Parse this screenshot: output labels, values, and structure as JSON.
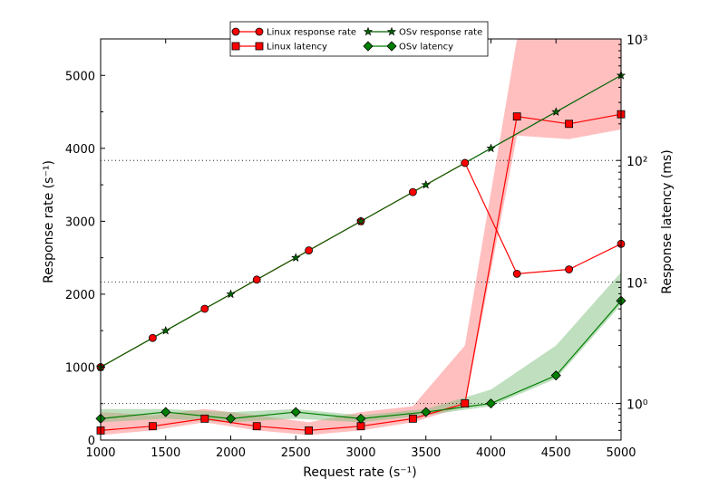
{
  "chart_data": {
    "type": "line",
    "x": [
      1000,
      1400,
      1500,
      1800,
      2000,
      2200,
      2500,
      2600,
      3000,
      3400,
      3500,
      3800,
      4000,
      4200,
      4500,
      4600,
      5000
    ],
    "xlabel": "Request rate (s⁻¹)",
    "xlim": [
      1000,
      5000
    ],
    "xticks": [
      "1000",
      "1500",
      "2000",
      "2500",
      "3000",
      "3500",
      "4000",
      "4500",
      "5000"
    ],
    "ylabel_left": "Response rate (s⁻¹)",
    "ylim_left": [
      0,
      5500
    ],
    "yticks_left": [
      "0",
      "1000",
      "2000",
      "3000",
      "4000",
      "5000"
    ],
    "ylabel_right": "Response latency (ms)",
    "yscale_right": "log",
    "ylim_right": [
      0.5,
      1000
    ],
    "yticks_right": [
      "10⁰",
      "10¹",
      "10²",
      "10³"
    ],
    "grid": "dotted horizontal lines at right-axis decades",
    "legend_position": "top-center",
    "series": [
      {
        "name": "Linux response rate",
        "axis": "left",
        "color": "#ff0000",
        "marker": "circle",
        "x": [
          1000,
          1400,
          1800,
          2200,
          2600,
          3000,
          3400,
          3800,
          4200,
          4600,
          5000
        ],
        "y": [
          1000,
          1400,
          1800,
          2200,
          2600,
          3000,
          3400,
          3800,
          2280,
          2340,
          2690
        ]
      },
      {
        "name": "Linux latency",
        "axis": "right",
        "color": "#ff0000",
        "marker": "square",
        "x": [
          1000,
          1400,
          1800,
          2200,
          2600,
          3000,
          3400,
          3800,
          4200,
          4600,
          5000
        ],
        "y": [
          0.6,
          0.65,
          0.75,
          0.65,
          0.6,
          0.65,
          0.75,
          1.0,
          230,
          200,
          240
        ],
        "band_low": [
          0.55,
          0.6,
          0.7,
          0.6,
          0.55,
          0.6,
          0.7,
          0.95,
          160,
          150,
          180
        ],
        "band_high": [
          0.85,
          0.8,
          0.9,
          0.8,
          0.7,
          0.85,
          0.95,
          3.0,
          2000,
          2000,
          2000
        ],
        "band_color": "#ff8080"
      },
      {
        "name": "OSv response rate",
        "axis": "left",
        "color": "#006400",
        "marker": "star",
        "x": [
          1000,
          1500,
          2000,
          2500,
          3000,
          3500,
          4000,
          4500,
          5000
        ],
        "y": [
          1000,
          1500,
          2000,
          2500,
          3000,
          3500,
          4000,
          4500,
          5000
        ]
      },
      {
        "name": "OSv latency",
        "axis": "right",
        "color": "#008000",
        "marker": "diamond",
        "x": [
          1000,
          1500,
          2000,
          2500,
          3000,
          3500,
          4000,
          4500,
          5000
        ],
        "y": [
          0.75,
          0.85,
          0.75,
          0.85,
          0.75,
          0.85,
          1.0,
          1.7,
          7.0
        ],
        "band_low": [
          0.7,
          0.75,
          0.7,
          0.75,
          0.7,
          0.8,
          0.95,
          1.6,
          6.5
        ],
        "band_high": [
          0.9,
          0.9,
          0.85,
          0.9,
          0.8,
          0.9,
          1.3,
          3.0,
          12
        ],
        "band_color": "#80c080"
      }
    ]
  }
}
